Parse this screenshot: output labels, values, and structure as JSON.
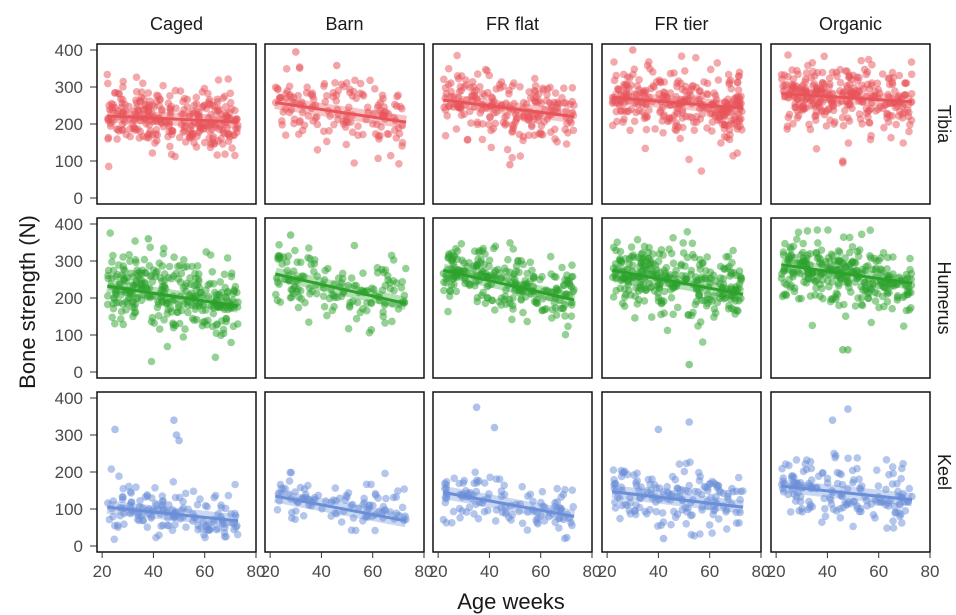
{
  "chart_data": {
    "type": "scatter",
    "xlabel": "Age weeks",
    "ylabel": "Bone strength (N)",
    "xlim": [
      18,
      80
    ],
    "ylim": [
      0,
      400
    ],
    "x_ticks": [
      20,
      40,
      60,
      80
    ],
    "y_ticks": [
      0,
      100,
      200,
      300,
      400
    ],
    "housing": [
      "Caged",
      "Barn",
      "FR flat",
      "FR tier",
      "Organic"
    ],
    "bones": [
      {
        "name": "Tibia",
        "color": "#e8545a"
      },
      {
        "name": "Humerus",
        "color": "#2ca22c"
      },
      {
        "name": "Keel",
        "color": "#6a8ed8"
      }
    ],
    "panels": {
      "Tibia": {
        "Caged": {
          "n": 300,
          "x_range": [
            22,
            73
          ],
          "center": [
            225,
            205
          ],
          "spread": 40,
          "trend": [
            [
              22,
              222
            ],
            [
              73,
              205
            ]
          ],
          "outliers": []
        },
        "Barn": {
          "n": 150,
          "x_range": [
            22,
            73
          ],
          "center": [
            255,
            205
          ],
          "spread": 45,
          "trend": [
            [
              22,
              258
            ],
            [
              73,
              205
            ]
          ],
          "outliers": [
            [
              30,
              395
            ],
            [
              46,
              358
            ]
          ]
        },
        "FR flat": {
          "n": 220,
          "x_range": [
            22,
            73
          ],
          "center": [
            265,
            225
          ],
          "spread": 45,
          "trend": [
            [
              22,
              265
            ],
            [
              73,
              220
            ]
          ],
          "outliers": [
            [
              48,
              90
            ]
          ]
        },
        "FR tier": {
          "n": 300,
          "x_range": [
            22,
            73
          ],
          "center": [
            272,
            245
          ],
          "spread": 45,
          "trend": [
            [
              22,
              272
            ],
            [
              73,
              243
            ]
          ],
          "outliers": [
            [
              30,
              400
            ]
          ]
        },
        "Organic": {
          "n": 300,
          "x_range": [
            22,
            73
          ],
          "center": [
            285,
            260
          ],
          "spread": 45,
          "trend": [
            [
              22,
              282
            ],
            [
              73,
              260
            ]
          ],
          "outliers": [
            [
              46,
              95
            ],
            [
              46,
              100
            ]
          ]
        }
      },
      "Humerus": {
        "Caged": {
          "n": 300,
          "x_range": [
            22,
            73
          ],
          "center": [
            235,
            180
          ],
          "spread": 50,
          "trend": [
            [
              22,
              232
            ],
            [
              73,
              178
            ]
          ],
          "outliers": [
            [
              38,
              360
            ]
          ]
        },
        "Barn": {
          "n": 150,
          "x_range": [
            22,
            73
          ],
          "center": [
            265,
            190
          ],
          "spread": 45,
          "trend": [
            [
              22,
              265
            ],
            [
              73,
              185
            ]
          ],
          "outliers": [
            [
              28,
              370
            ]
          ]
        },
        "FR flat": {
          "n": 250,
          "x_range": [
            22,
            73
          ],
          "center": [
            275,
            200
          ],
          "spread": 45,
          "trend": [
            [
              22,
              275
            ],
            [
              73,
              195
            ]
          ],
          "outliers": []
        },
        "FR tier": {
          "n": 300,
          "x_range": [
            22,
            73
          ],
          "center": [
            275,
            210
          ],
          "spread": 45,
          "trend": [
            [
              22,
              275
            ],
            [
              73,
              210
            ]
          ],
          "outliers": [
            [
              52,
              20
            ]
          ]
        },
        "Organic": {
          "n": 300,
          "x_range": [
            22,
            73
          ],
          "center": [
            290,
            240
          ],
          "spread": 45,
          "trend": [
            [
              22,
              290
            ],
            [
              73,
              240
            ]
          ],
          "outliers": [
            [
              46,
              60
            ],
            [
              48,
              60
            ]
          ]
        }
      },
      "Keel": {
        "Caged": {
          "n": 150,
          "x_range": [
            22,
            73
          ],
          "center": [
            105,
            70
          ],
          "spread": 35,
          "trend": [
            [
              22,
              105
            ],
            [
              73,
              68
            ]
          ],
          "outliers": [
            [
              25,
              315
            ],
            [
              48,
              340
            ],
            [
              49,
              300
            ],
            [
              50,
              285
            ]
          ]
        },
        "Barn": {
          "n": 100,
          "x_range": [
            22,
            73
          ],
          "center": [
            130,
            95
          ],
          "spread": 25,
          "trend": [
            [
              22,
              135
            ],
            [
              73,
              68
            ]
          ],
          "outliers": []
        },
        "FR flat": {
          "n": 120,
          "x_range": [
            22,
            73
          ],
          "center": [
            140,
            90
          ],
          "spread": 35,
          "trend": [
            [
              22,
              145
            ],
            [
              73,
              80
            ]
          ],
          "outliers": [
            [
              35,
              375
            ],
            [
              42,
              320
            ]
          ]
        },
        "FR tier": {
          "n": 160,
          "x_range": [
            22,
            73
          ],
          "center": [
            145,
            115
          ],
          "spread": 40,
          "trend": [
            [
              22,
              147
            ],
            [
              73,
              105
            ]
          ],
          "outliers": [
            [
              40,
              315
            ],
            [
              52,
              335
            ],
            [
              42,
              20
            ]
          ]
        },
        "Organic": {
          "n": 160,
          "x_range": [
            22,
            73
          ],
          "center": [
            160,
            125
          ],
          "spread": 45,
          "trend": [
            [
              22,
              162
            ],
            [
              73,
              125
            ]
          ],
          "outliers": [
            [
              42,
              340
            ],
            [
              48,
              370
            ]
          ]
        }
      }
    }
  }
}
